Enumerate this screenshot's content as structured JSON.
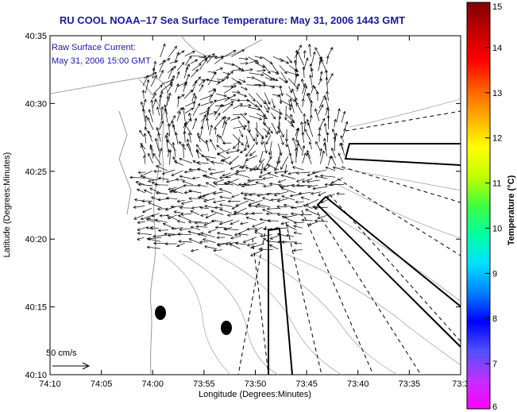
{
  "title": "RU COOL  NOAA–17  Sea Surface Temperature:  May 31, 2006 1443 GMT",
  "annotation": {
    "line1": "Raw Surface Current:",
    "line2": "May 31, 2006 15:00 GMT"
  },
  "axes": {
    "xlabel": "Longitude (Degrees:Minutes)",
    "ylabel": "Latitude (Degrees:Minutes)",
    "xticks": [
      "74:10",
      "74:05",
      "74:00",
      "73:55",
      "73:50",
      "73:45",
      "73:40",
      "73:35",
      "73:3"
    ],
    "yticks": [
      "40:35",
      "40:30",
      "40:25",
      "40:20",
      "40:15",
      "40:10"
    ]
  },
  "scale": {
    "label": "50 cm/s"
  },
  "colorbar": {
    "label": "Temperature (°C)",
    "ticks": [
      "15",
      "14",
      "13",
      "12",
      "11",
      "10",
      "9",
      "8",
      "7",
      "6"
    ],
    "colors": [
      "#ff00ff",
      "#c030ff",
      "#5050ff",
      "#0000ff",
      "#0080ff",
      "#00e0ff",
      "#00ffa0",
      "#40ff40",
      "#c0ff00",
      "#ffff00",
      "#ffb000",
      "#ff6000",
      "#ff0000",
      "#c00000",
      "#800000"
    ]
  }
}
